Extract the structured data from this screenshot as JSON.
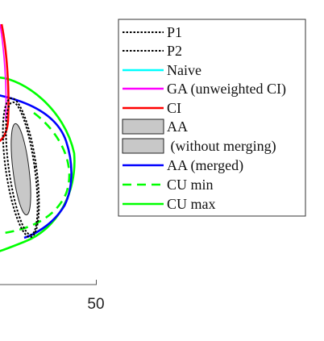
{
  "chart_data": {
    "type": "line",
    "x_tick_labels": [
      "50"
    ],
    "legend_location": "right, outside plot area",
    "legend": [
      {
        "label": "P1",
        "color": "#000000",
        "style": "dotted"
      },
      {
        "label": "P2",
        "color": "#000000",
        "style": "dotted"
      },
      {
        "label": "Naive",
        "color": "#00ffff",
        "style": "solid"
      },
      {
        "label": "GA (unweighted CI)",
        "color": "#ff00ff",
        "style": "solid"
      },
      {
        "label": "CI",
        "color": "#ff0000",
        "style": "solid"
      },
      {
        "label": "AA",
        "color": "#c8c8c8",
        "style": "filled"
      },
      {
        "label": " (without merging)",
        "color": "#c8c8c8",
        "style": "filled"
      },
      {
        "label": "AA (merged)",
        "color": "#0000ff",
        "style": "solid"
      },
      {
        "label": "CU min",
        "color": "#00ff00",
        "style": "dashed"
      },
      {
        "label": "CU max",
        "color": "#00ff00",
        "style": "solid"
      }
    ],
    "colors": {
      "naive": "#00ffff",
      "ga": "#ff00ff",
      "ci": "#ff0000",
      "aa_fill": "#c8c8c8",
      "aa_merged": "#0000ff",
      "cu_min": "#00ff00",
      "cu_max": "#00ff00",
      "axis": "#555555"
    }
  }
}
